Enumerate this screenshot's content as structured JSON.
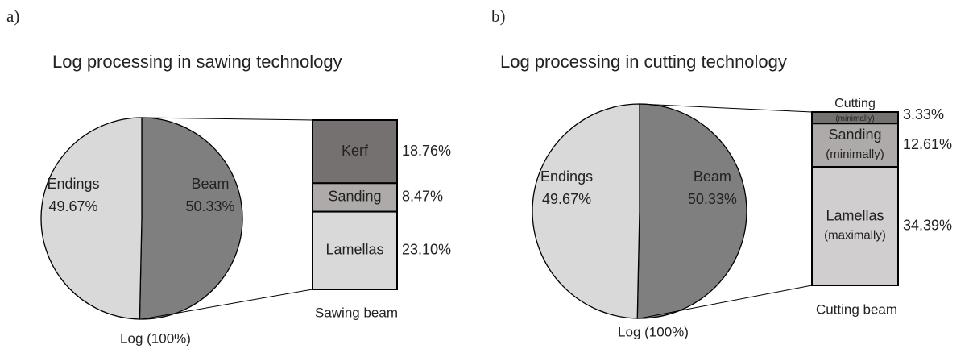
{
  "chart_data": [
    {
      "type": "pie",
      "panel": "a)",
      "title": "Log processing in sawing technology",
      "categories": [
        "Endings",
        "Beam"
      ],
      "values": [
        49.67,
        50.33
      ],
      "value_labels": [
        "49.67%",
        "50.33%"
      ],
      "colors": [
        "#d9d9d9",
        "#7f7f7f"
      ],
      "caption": "Log (100%)",
      "breakdown": {
        "categories": [
          "Kerf",
          "Sanding",
          "Lamellas"
        ],
        "values": [
          18.76,
          8.47,
          23.1
        ],
        "value_labels": [
          "18.76%",
          "8.47%",
          "23.10%"
        ],
        "colors": [
          "#767171",
          "#aeaaaa",
          "#d9d9d9"
        ],
        "caption": "Sawing beam"
      }
    },
    {
      "type": "pie",
      "panel": "b)",
      "title": "Log processing in cutting technology",
      "categories": [
        "Endings",
        "Beam"
      ],
      "values": [
        49.67,
        50.33
      ],
      "value_labels": [
        "49.67%",
        "50.33%"
      ],
      "colors": [
        "#d9d9d9",
        "#7f7f7f"
      ],
      "caption": "Log (100%)",
      "breakdown": {
        "categories": [
          "Cutting",
          "Sanding",
          "Lamellas"
        ],
        "notes": [
          "(minimally)",
          "(minimally)",
          "(maximally)"
        ],
        "values": [
          3.33,
          12.61,
          34.39
        ],
        "value_labels": [
          "3.33%",
          "12.61%",
          "34.39%"
        ],
        "colors": [
          "#767171",
          "#aeaaaa",
          "#d0cece"
        ],
        "caption": "Cutting beam"
      }
    }
  ]
}
